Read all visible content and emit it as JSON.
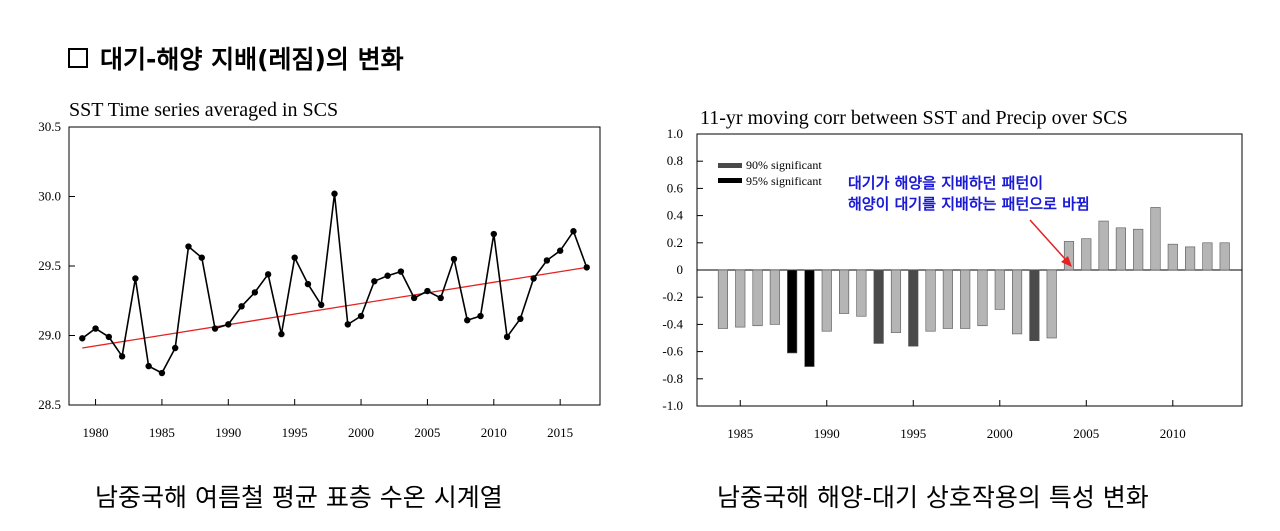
{
  "page": {
    "heading": "대기-해양 지배(레짐)의 변화",
    "caption_left": "남중국해 여름철 평균 표층 수온 시계열",
    "caption_right": "남중국해 해양-대기 상호작용의 특성 변화"
  },
  "chart_data": [
    {
      "type": "line",
      "title": "SST Time series averaged in SCS",
      "xlabel": "",
      "ylabel": "",
      "xlim": [
        1978,
        2018
      ],
      "ylim": [
        28.5,
        30.5
      ],
      "xticks": [
        1980,
        1985,
        1990,
        1995,
        2000,
        2005,
        2010,
        2015
      ],
      "yticks": [
        28.5,
        29.0,
        29.5,
        30.0,
        30.5
      ],
      "ytick_labels": [
        "28.5",
        "29.0",
        "29.5",
        "30.0",
        "30.5"
      ],
      "grid": false,
      "series": [
        {
          "color": "#000000",
          "x": [
            1979,
            1980,
            1981,
            1982,
            1983,
            1984,
            1985,
            1986,
            1987,
            1988,
            1989,
            1990,
            1991,
            1992,
            1993,
            1994,
            1995,
            1996,
            1997,
            1998,
            1999,
            2000,
            2001,
            2002,
            2003,
            2004,
            2005,
            2006,
            2007,
            2008,
            2009,
            2010,
            2011,
            2012,
            2013,
            2014,
            2015,
            2016,
            2017
          ],
          "y": [
            28.98,
            29.05,
            28.99,
            28.85,
            29.41,
            28.78,
            28.73,
            28.91,
            29.64,
            29.56,
            29.05,
            29.08,
            29.21,
            29.31,
            29.44,
            29.01,
            29.56,
            29.37,
            29.22,
            30.02,
            29.08,
            29.14,
            29.39,
            29.43,
            29.46,
            29.27,
            29.32,
            29.27,
            29.55,
            29.11,
            29.14,
            29.73,
            28.99,
            29.12,
            29.41,
            29.54,
            29.61,
            29.75,
            29.49
          ]
        }
      ],
      "trend": {
        "color": "#e52222",
        "x": [
          1979,
          2017
        ],
        "y": [
          28.91,
          29.49
        ]
      }
    },
    {
      "type": "bar",
      "title": "11-yr moving corr  between SST and Precip over SCS",
      "xlabel": "",
      "ylabel": "",
      "xlim": [
        1982.5,
        2014.0
      ],
      "ylim": [
        -1.0,
        1.0
      ],
      "xticks": [
        1985,
        1990,
        1995,
        2000,
        2005,
        2010
      ],
      "yticks": [
        1.0,
        0.8,
        0.6,
        0.4,
        0.2,
        0,
        -0.2,
        -0.4,
        -0.6,
        -0.8,
        -1.0
      ],
      "ytick_labels": [
        "1.0",
        "0.8",
        "0.6",
        "0.4",
        "0.2",
        "0",
        "-0.2",
        "-0.4",
        "-0.6",
        "-0.8",
        "-1.0"
      ],
      "grid": false,
      "legend_position": "top-left",
      "legend": [
        {
          "label": "90% significant",
          "color": "#4a4a4a"
        },
        {
          "label": "95% significant",
          "color": "#000000"
        }
      ],
      "colors": {
        "normal": "#b5b5b5",
        "sig90": "#4a4a4a",
        "sig95": "#000000"
      },
      "x": [
        1984,
        1985,
        1986,
        1987,
        1988,
        1989,
        1990,
        1991,
        1992,
        1993,
        1994,
        1995,
        1996,
        1997,
        1998,
        1999,
        2000,
        2001,
        2002,
        2003,
        2004,
        2005,
        2006,
        2007,
        2008,
        2009,
        2010,
        2011,
        2012,
        2013
      ],
      "values": [
        -0.43,
        -0.42,
        -0.41,
        -0.4,
        -0.61,
        -0.71,
        -0.45,
        -0.32,
        -0.34,
        -0.54,
        -0.46,
        -0.56,
        -0.45,
        -0.43,
        -0.43,
        -0.41,
        -0.29,
        -0.47,
        -0.52,
        -0.5,
        0.21,
        0.23,
        0.36,
        0.31,
        0.3,
        0.46,
        0.19,
        0.17,
        0.2,
        0.2
      ],
      "significance": [
        "none",
        "none",
        "none",
        "none",
        "sig95",
        "sig95",
        "none",
        "none",
        "none",
        "sig90",
        "none",
        "sig90",
        "none",
        "none",
        "none",
        "none",
        "none",
        "none",
        "sig90",
        "none",
        "none",
        "none",
        "none",
        "none",
        "none",
        "none",
        "none",
        "none",
        "none",
        "none"
      ],
      "annotation": {
        "lines": [
          "대기가 해양을 지배하던 패턴이",
          "해양이 대기를 지배하는 패턴으로 바뀜"
        ],
        "color": "#1a1ad6",
        "arrow_color": "#e52222"
      }
    }
  ]
}
